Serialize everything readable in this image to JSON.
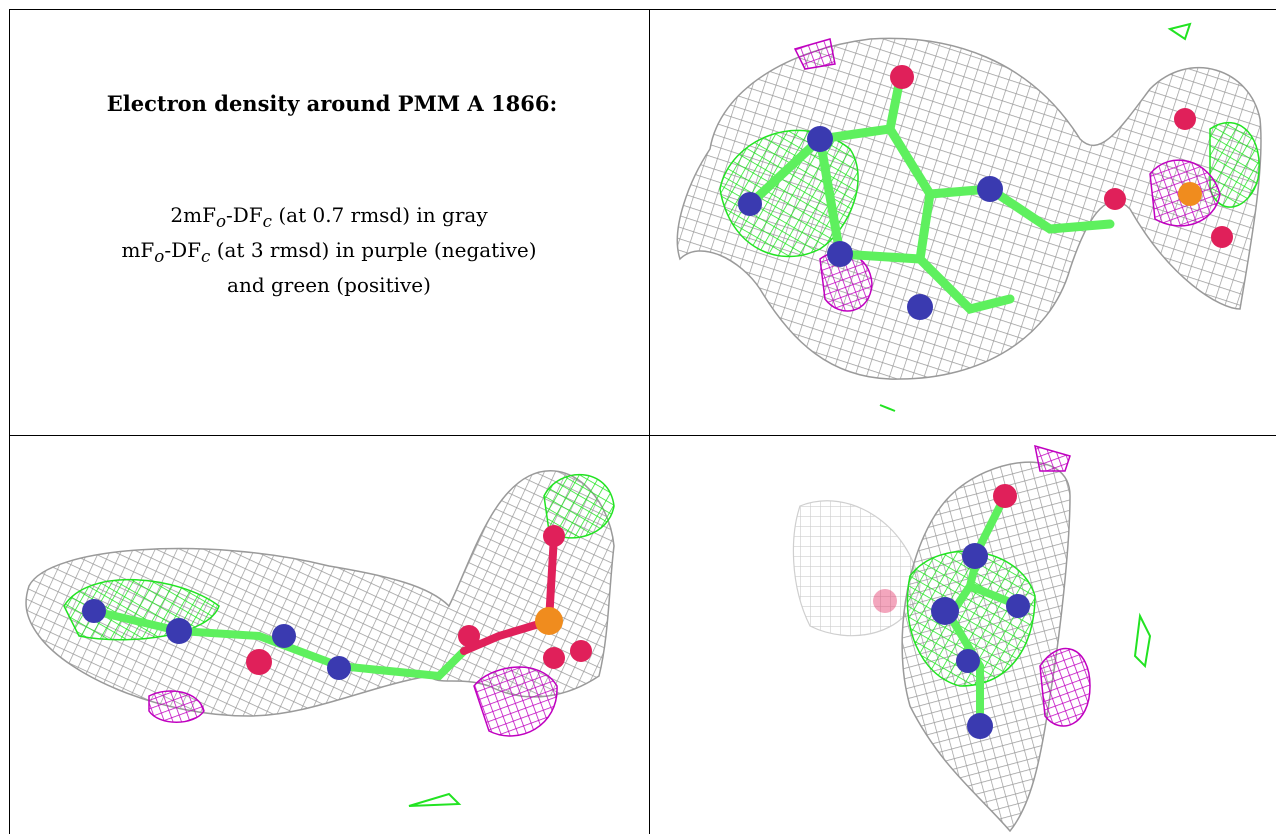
{
  "heading": "Electron density around PMM A 1866:",
  "legend_lines": [
    {
      "a": "2mF",
      "a_sub": "o",
      "b": "-DF",
      "b_sub": "c",
      "rest": " (at 0.7 rmsd) in gray"
    },
    {
      "a": "mF",
      "a_sub": "o",
      "b": "-DF",
      "b_sub": "c",
      "rest": " (at 3 rmsd) in purple (negative)"
    },
    {
      "plain": "and green (positive)"
    }
  ],
  "colors": {
    "mesh_gray": "#9a9a9a",
    "mesh_purple": "#c000c0",
    "mesh_green": "#22e322",
    "bond_green": "#5ef05e",
    "atom_nitrogen": "#3a3ab0",
    "atom_oxygen": "#e0205a",
    "atom_phosphorus": "#f08c1e"
  },
  "views": [
    {
      "name": "view-top-right"
    },
    {
      "name": "view-bottom-left"
    },
    {
      "name": "view-bottom-right"
    }
  ]
}
